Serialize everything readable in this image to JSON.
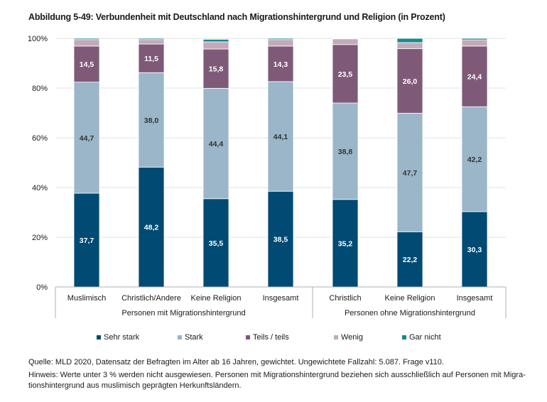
{
  "chart_data": {
    "type": "bar",
    "stacked": true,
    "title": "Abbildung 5-49:  Verbundenheit mit Deutschland nach Migrationshintergrund und Religion (in Prozent)",
    "xlabel": "",
    "ylabel": "",
    "ylim": [
      0,
      100
    ],
    "yticks": [
      0,
      20,
      40,
      60,
      80,
      100
    ],
    "ytick_labels": [
      "0%",
      "20%",
      "40%",
      "60%",
      "80%",
      "100%"
    ],
    "grid": true,
    "legend_position": "bottom",
    "categories": [
      "Muslimisch",
      "Christlich/Andere",
      "Keine Religion",
      "Insgesamt",
      "Christlich",
      "Keine Religion",
      "Insgesamt"
    ],
    "groups": [
      {
        "label": "Personen mit Migrationshintergrund",
        "categories": [
          0,
          1,
          2,
          3
        ]
      },
      {
        "label": "Personen ohne Migrationshintergrund",
        "categories": [
          4,
          5,
          6
        ]
      }
    ],
    "series": [
      {
        "name": "Sehr stark",
        "color": "#004a73",
        "label_color": "#ffffff",
        "values": [
          37.7,
          48.2,
          35.5,
          38.5,
          35.2,
          22.2,
          30.3
        ],
        "labels": [
          "37,7",
          "48,2",
          "35,5",
          "38,5",
          "35,2",
          "22,2",
          "30,3"
        ]
      },
      {
        "name": "Stark",
        "color": "#9ab6c8",
        "label_color": "#333333",
        "values": [
          44.7,
          38.0,
          44.4,
          44.1,
          38.8,
          47.7,
          42.2
        ],
        "labels": [
          "44,7",
          "38,0",
          "44,4",
          "44,1",
          "38,8",
          "47,7",
          "42,2"
        ]
      },
      {
        "name": "Teils / teils",
        "color": "#7f5a78",
        "label_color": "#ffffff",
        "values": [
          14.5,
          11.5,
          15.8,
          14.3,
          23.5,
          26.0,
          24.4
        ],
        "labels": [
          "14,5",
          "11,5",
          "15,8",
          "14,3",
          "23,5",
          "26,0",
          "24,4"
        ]
      },
      {
        "name": "Wenig",
        "color": "#c2aabb",
        "label_color": "#333333",
        "values": [
          2.6,
          1.8,
          2.9,
          2.6,
          2.3,
          2.4,
          2.5
        ],
        "labels": [
          "",
          "",
          "",
          "",
          "",
          "",
          ""
        ]
      },
      {
        "name": "Gar nicht",
        "color": "#168a8c",
        "label_color": "#ffffff",
        "values": [
          0.5,
          0.5,
          1.0,
          0.5,
          0.2,
          1.7,
          0.6
        ],
        "labels": [
          "",
          "",
          "",
          "",
          "",
          "",
          ""
        ]
      }
    ]
  },
  "source_note": "Quelle: MLD 2020, Datensatz der Befragten im Alter ab 16 Jahren, gewichtet. Ungewichtete Fallzahl: 5.087. Frage v110.",
  "hint_note": "Hinweis: Werte unter 3 % werden nicht ausgewiesen. Personen mit Migrationshintergrund beziehen sich ausschließlich auf Personen mit Migra-tionshintergrund aus muslimisch geprägten Herkunftsländern."
}
